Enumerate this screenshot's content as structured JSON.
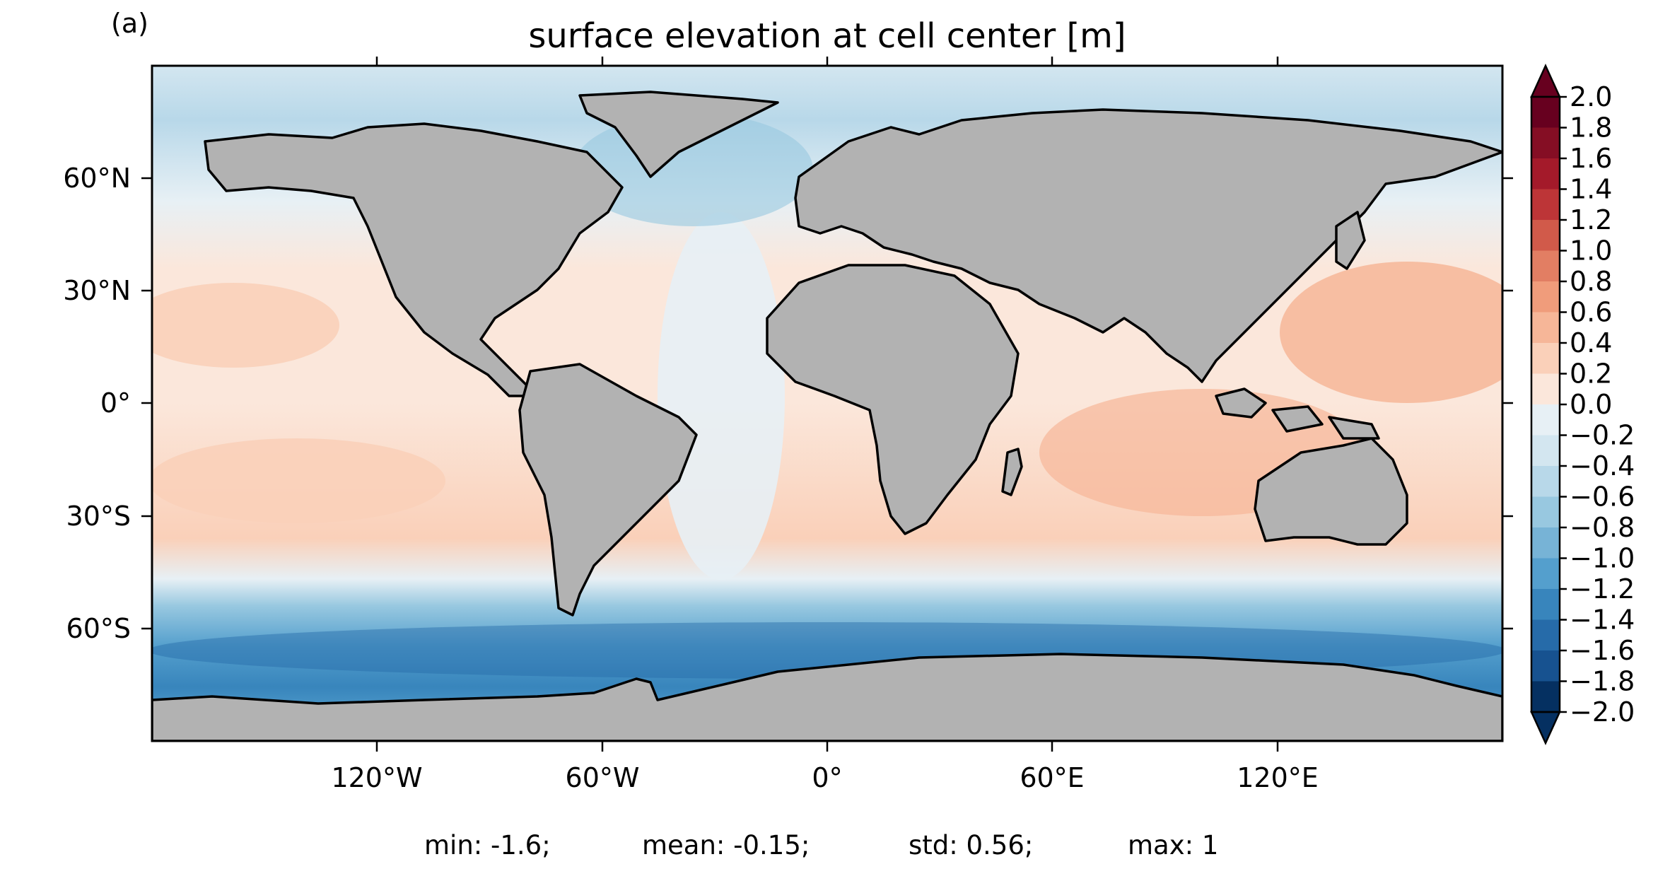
{
  "figure": {
    "panel_label": "(a)",
    "title": "surface elevation at cell center [m]"
  },
  "map": {
    "projection": "PlateCarree",
    "extent_lon": [
      -180,
      180
    ],
    "extent_lat": [
      -90,
      90
    ],
    "land_color": "#b2b2b2",
    "colormap": "RdBu_r",
    "x_ticks": [
      "120°W",
      "60°W",
      "0°",
      "60°E",
      "120°E"
    ],
    "y_ticks": [
      "60°N",
      "30°N",
      "0°",
      "30°S",
      "60°S"
    ]
  },
  "colorbar": {
    "levels": [
      "2.0",
      "1.8",
      "1.6",
      "1.4",
      "1.2",
      "1.0",
      "0.8",
      "0.6",
      "0.4",
      "0.2",
      "0.0",
      "−0.2",
      "−0.4",
      "−0.6",
      "−0.8",
      "−1.0",
      "−1.2",
      "−1.4",
      "−1.6",
      "−1.8",
      "−2.0"
    ],
    "colors": [
      "#67001f",
      "#850e24",
      "#a41a2a",
      "#bd3537",
      "#d15a4a",
      "#e27e63",
      "#f09c7b",
      "#f6b698",
      "#fad0b9",
      "#fbe7db",
      "#f6f1ef",
      "#e7f0f5",
      "#d3e6f0",
      "#b8d8e9",
      "#98c8e0",
      "#77b3d6",
      "#549fcd",
      "#3885bc",
      "#266ba9",
      "#175290",
      "#053061"
    ],
    "extend": "both"
  },
  "stats": {
    "min": "min: -1.6;",
    "mean": "mean: -0.15;",
    "std": "std: 0.56;",
    "max": "max: 1"
  }
}
